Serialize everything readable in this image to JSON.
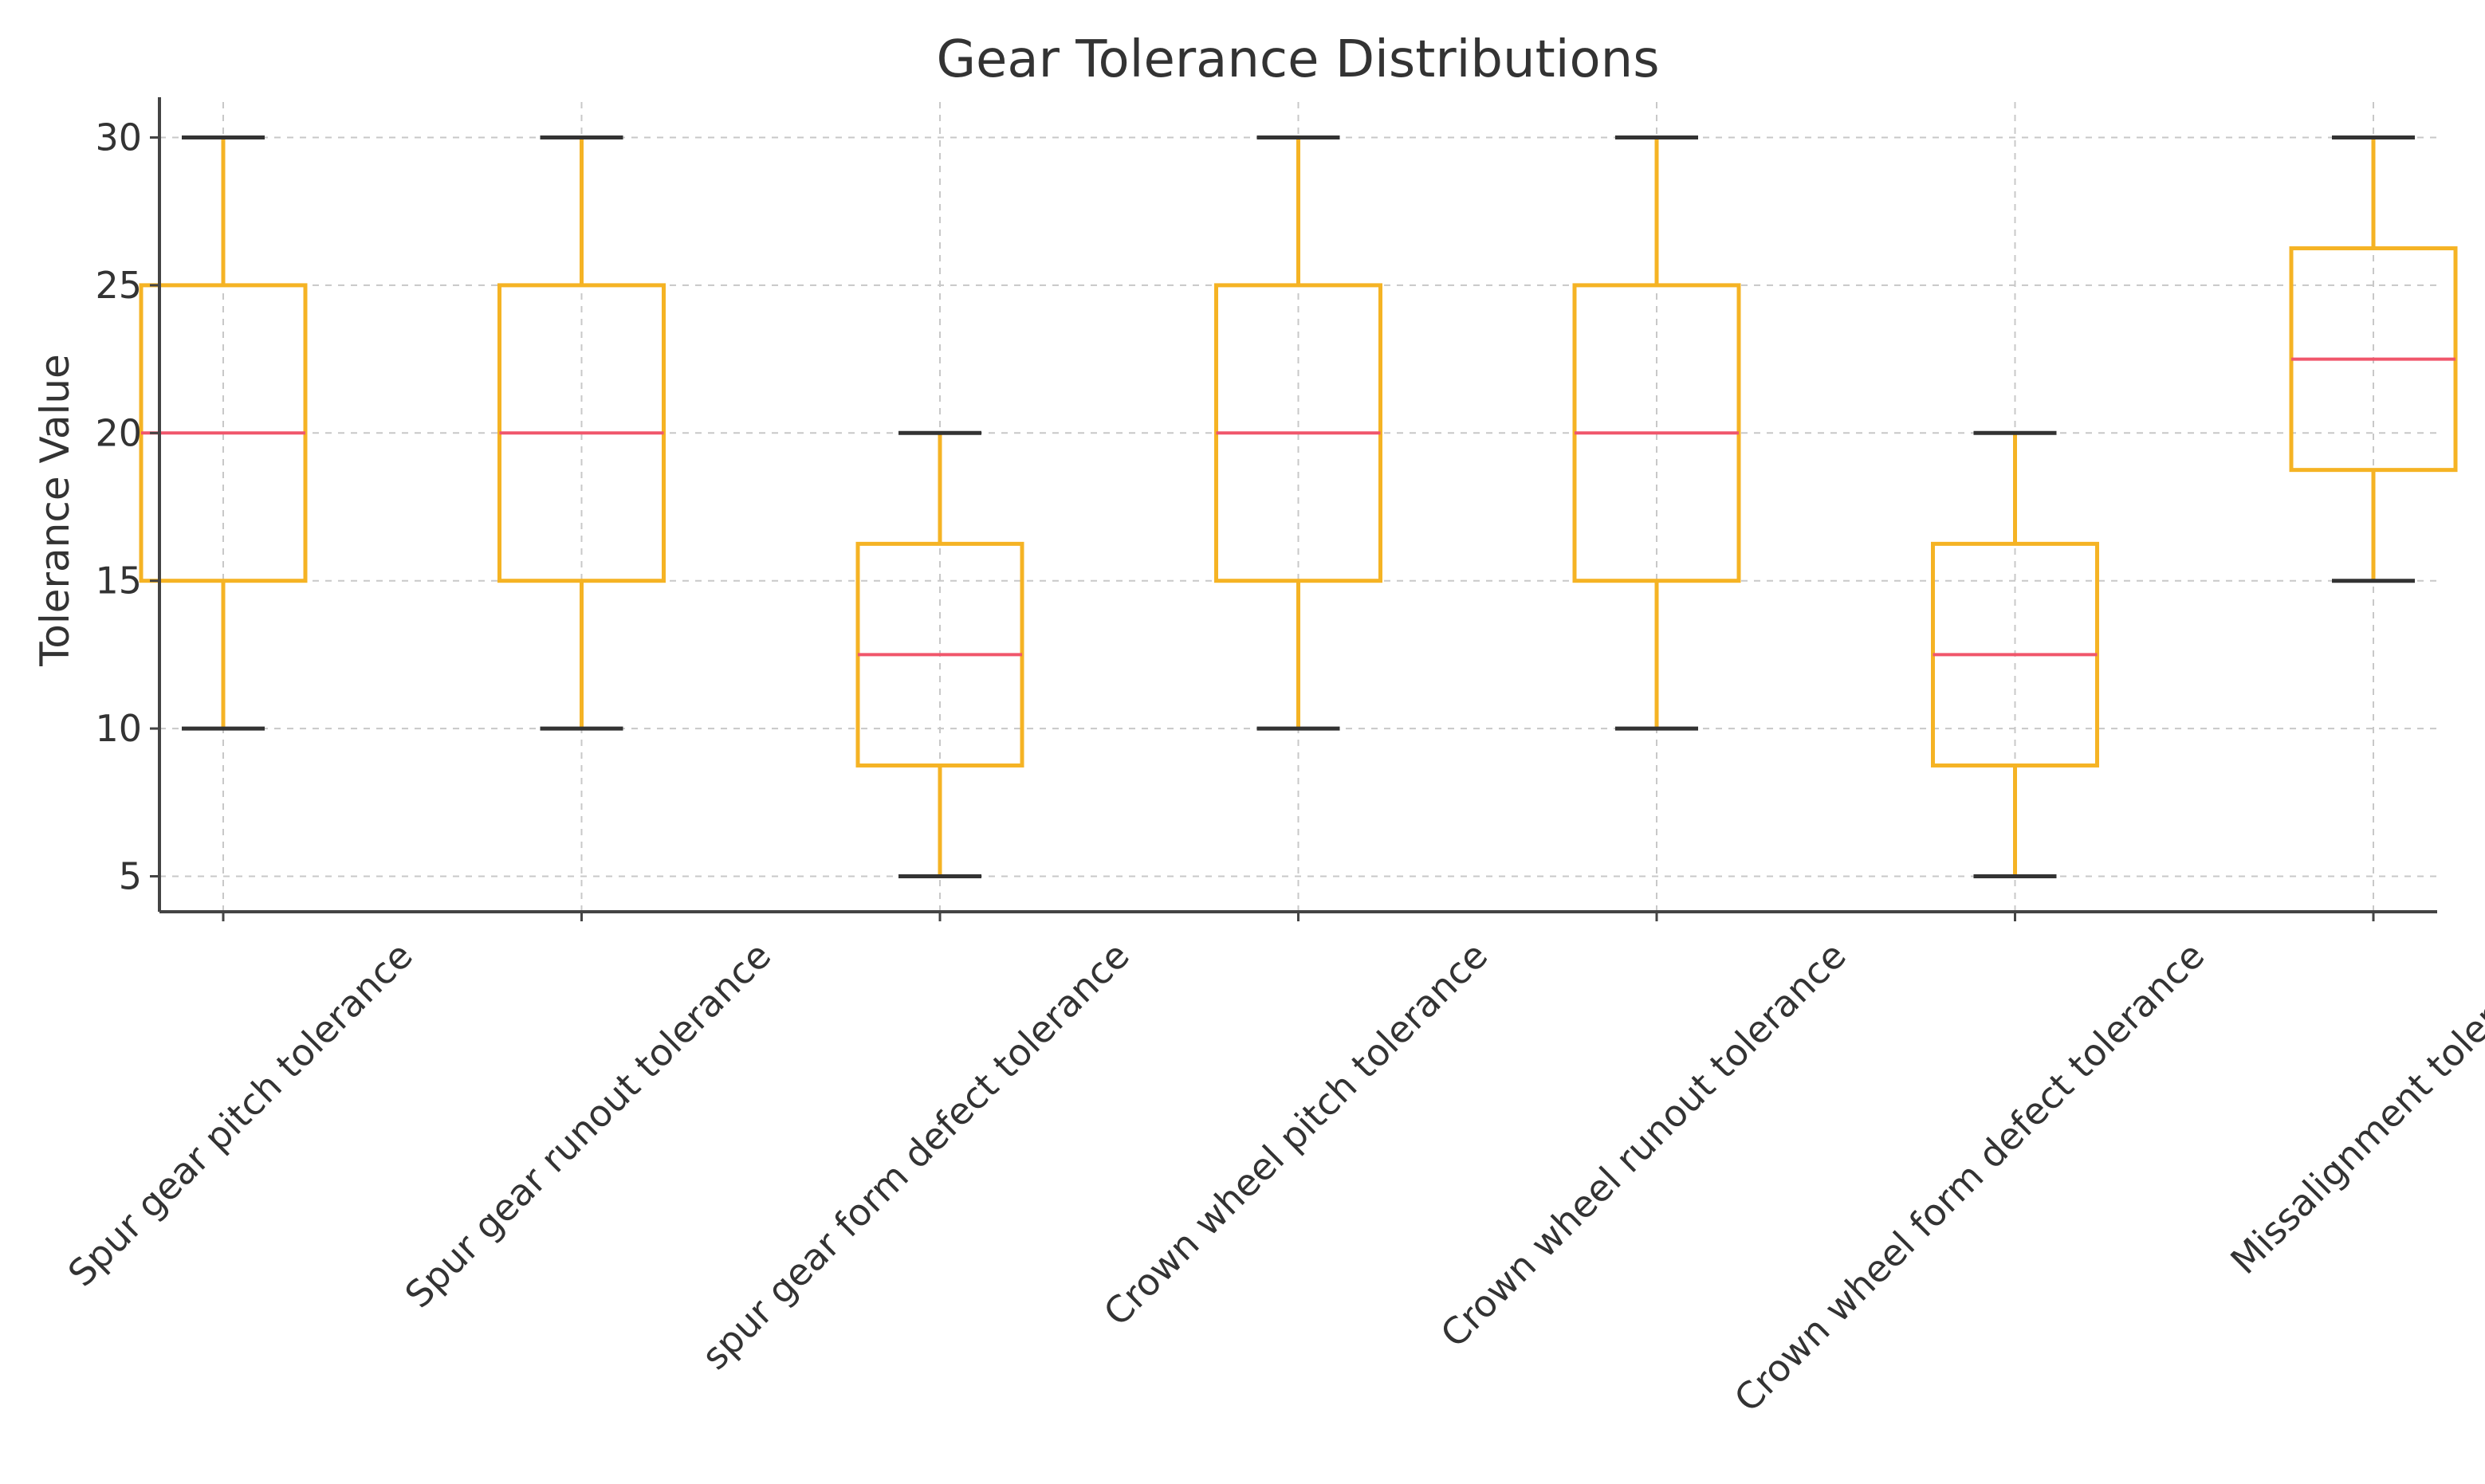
{
  "chart_data": {
    "type": "box",
    "title": "Gear Tolerance Distributions",
    "xlabel": "",
    "ylabel": "Tolerance Value",
    "ylim": [
      3.8,
      31.2
    ],
    "yticks": [
      5,
      10,
      15,
      20,
      25,
      30
    ],
    "grid": true,
    "categories": [
      "Spur gear pitch tolerance",
      "Spur gear runout tolerance",
      "spur gear form defect tolerance",
      "Crown wheel pitch tolerance",
      "Crown wheel runout tolerance",
      "Crown wheel form defect tolerance",
      "Missalignment tolerance"
    ],
    "boxes": [
      {
        "min": 10,
        "q1": 15,
        "median": 20,
        "q3": 25,
        "max": 30
      },
      {
        "min": 10,
        "q1": 15,
        "median": 20,
        "q3": 25,
        "max": 30
      },
      {
        "min": 5,
        "q1": 8.75,
        "median": 12.5,
        "q3": 16.25,
        "max": 20
      },
      {
        "min": 10,
        "q1": 15,
        "median": 20,
        "q3": 25,
        "max": 30
      },
      {
        "min": 10,
        "q1": 15,
        "median": 20,
        "q3": 25,
        "max": 30
      },
      {
        "min": 5,
        "q1": 8.75,
        "median": 12.5,
        "q3": 16.25,
        "max": 20
      },
      {
        "min": 15,
        "q1": 18.75,
        "median": 22.5,
        "q3": 26.25,
        "max": 30
      }
    ],
    "colors": {
      "box": "#F5B324",
      "median": "#F0566B",
      "cap": "#333333",
      "grid": "#c8c8c8"
    }
  }
}
